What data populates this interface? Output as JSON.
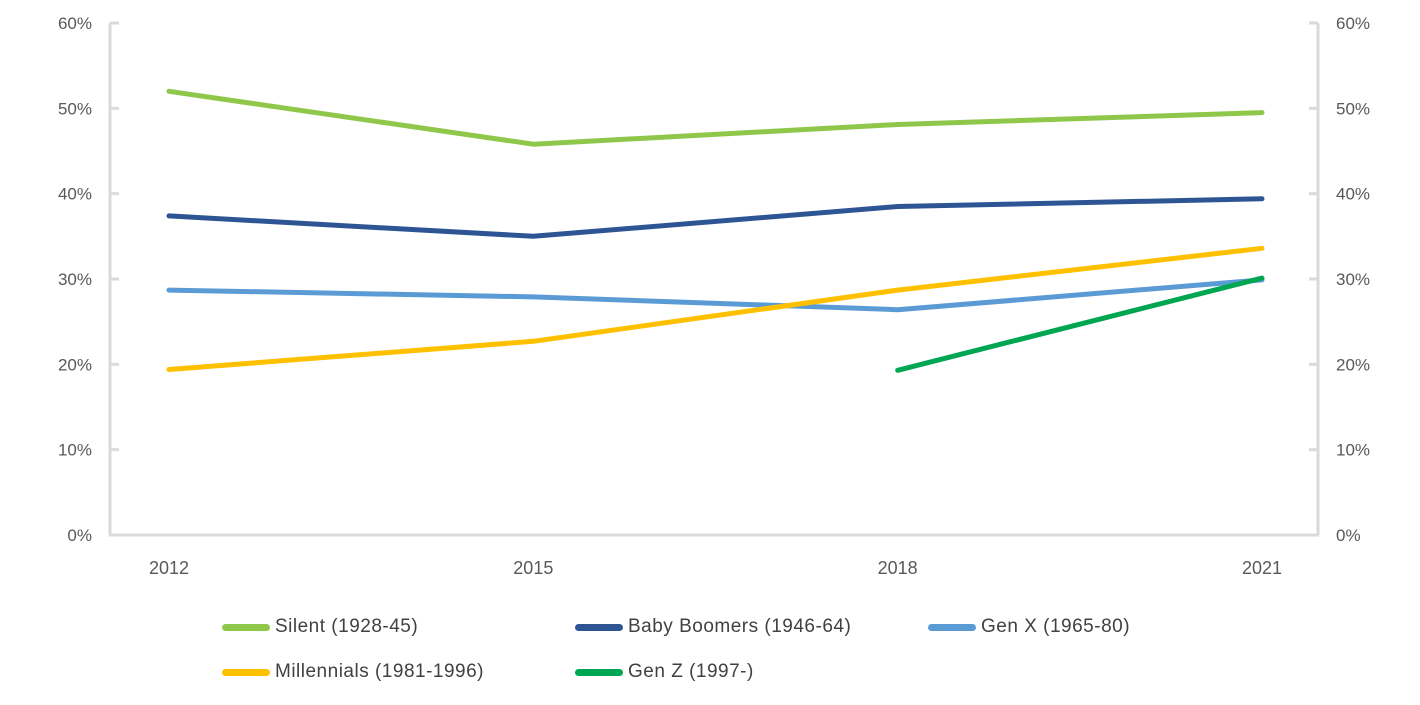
{
  "chart_data": {
    "type": "line",
    "title": "",
    "xlabel": "",
    "ylabel": "",
    "x_labels": [
      "2012",
      "2015",
      "2018",
      "2021"
    ],
    "y_tick_labels": [
      "60%",
      "50%",
      "40%",
      "30%",
      "20%",
      "10%",
      "0%"
    ],
    "y_tick_values": [
      60,
      50,
      40,
      30,
      20,
      10,
      0
    ],
    "ylim": [
      0,
      60
    ],
    "grid": false,
    "dual_y_axis": true,
    "legend_position": "bottom",
    "series": [
      {
        "name": "Silent (1928-45)",
        "color": "#8FC74B",
        "values": [
          52,
          45.8,
          48.1,
          49.5
        ]
      },
      {
        "name": "Baby Boomers (1946-64)",
        "color": "#2E5593",
        "values": [
          37.4,
          35,
          38.5,
          39.4
        ]
      },
      {
        "name": "Gen X (1965-80)",
        "color": "#5B9BD5",
        "values": [
          28.7,
          27.9,
          26.4,
          29.9
        ]
      },
      {
        "name": "Millennials (1981-1996)",
        "color": "#FFC000",
        "values": [
          19.4,
          22.7,
          28.7,
          33.6
        ]
      },
      {
        "name": "Gen Z (1997-)",
        "color": "#00A651",
        "values": [
          null,
          null,
          19.3,
          30.1
        ]
      }
    ],
    "axis_color": "#DADADA"
  }
}
